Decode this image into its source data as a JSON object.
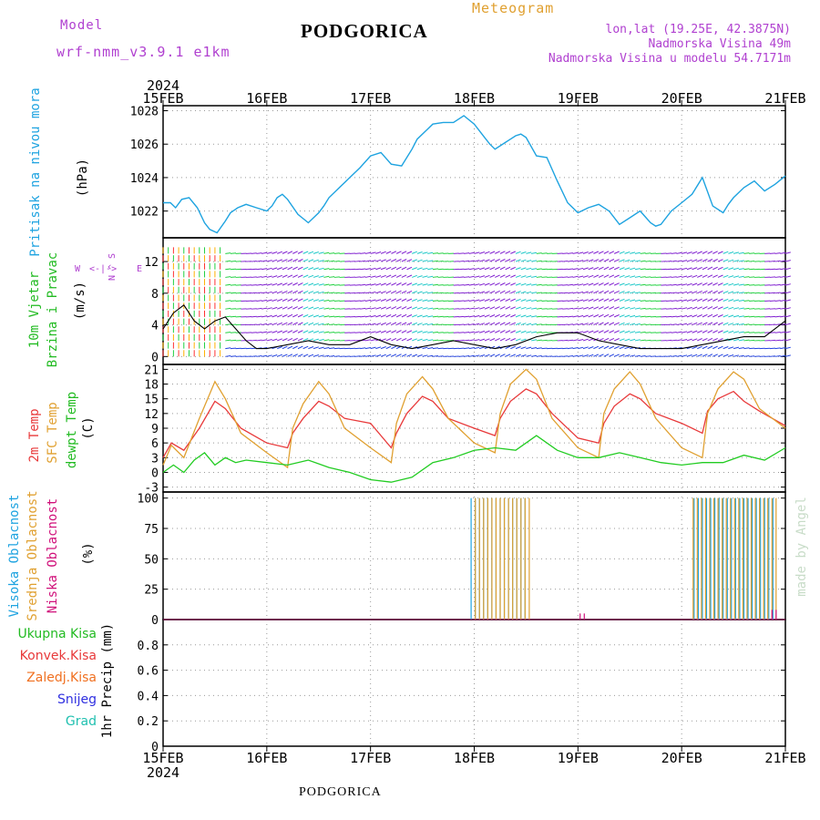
{
  "header": {
    "model_label": "Model",
    "model_name": "wrf-nmm_v3.9.1 e1km",
    "station": "PODGORICA",
    "product": "Meteogram",
    "lonlat": "lon,lat (19.25E, 42.3875N)",
    "elevation": "Nadmorska Visina 49m",
    "model_elevation": "Nadmorska Visina u modelu 54.7171m"
  },
  "footer": {
    "station": "PODGORICA"
  },
  "watermark": "made by Angel",
  "time_axis": {
    "year": "2024",
    "ticks": [
      "15FEB",
      "16FEB",
      "17FEB",
      "18FEB",
      "19FEB",
      "20FEB",
      "21FEB"
    ]
  },
  "colors": {
    "pressure": "#1ea3e0",
    "temp2m": "#e8393a",
    "sfc": "#e0a030",
    "dewpt": "#22cc22",
    "high_cloud": "#1ea3e0",
    "mid_cloud": "#e0a030",
    "low_cloud": "#d0107a",
    "magenta_label": "#b040d0"
  },
  "chart_data": [
    {
      "type": "line",
      "id": "pressure",
      "ylabels": [
        "Pritisak na nivou mora",
        "(hPa)"
      ],
      "ylim": [
        1020.4,
        1028.3
      ],
      "yticks": [
        1022,
        1024,
        1026,
        1028
      ],
      "series": [
        {
          "x": [
            0,
            0.07,
            0.12,
            0.18,
            0.25,
            0.33,
            0.4,
            0.45,
            0.52,
            0.6,
            0.65,
            0.72,
            0.8,
            0.9,
            1.0,
            1.05,
            1.1,
            1.15,
            1.2,
            1.3,
            1.4,
            1.5,
            1.55,
            1.6,
            1.7,
            1.8,
            1.9,
            2.0,
            2.1,
            2.2,
            2.3,
            2.35,
            2.4,
            2.45,
            2.55,
            2.6,
            2.7,
            2.8,
            2.9,
            3.0,
            3.1,
            3.15,
            3.2,
            3.3,
            3.35,
            3.4,
            3.45,
            3.5,
            3.6,
            3.7,
            3.8,
            3.9,
            4.0,
            4.1,
            4.2,
            4.3,
            4.4,
            4.5,
            4.6,
            4.7,
            4.75,
            4.8,
            4.9,
            5.0,
            5.1,
            5.2,
            5.3,
            5.4,
            5.45,
            5.5,
            5.6,
            5.7,
            5.8,
            5.9,
            6.0
          ],
          "y": [
            1022.5,
            1022.5,
            1022.2,
            1022.7,
            1022.8,
            1022.2,
            1021.3,
            1020.9,
            1020.7,
            1021.4,
            1021.9,
            1022.2,
            1022.4,
            1022.2,
            1022.0,
            1022.3,
            1022.8,
            1023.0,
            1022.7,
            1021.8,
            1021.3,
            1021.9,
            1022.3,
            1022.8,
            1023.4,
            1024.0,
            1024.6,
            1025.3,
            1025.5,
            1024.8,
            1024.7,
            1025.2,
            1025.7,
            1026.3,
            1026.9,
            1027.2,
            1027.3,
            1027.3,
            1027.7,
            1027.2,
            1026.4,
            1026.0,
            1025.7,
            1026.1,
            1026.3,
            1026.5,
            1026.6,
            1026.4,
            1025.3,
            1025.2,
            1023.8,
            1022.5,
            1021.9,
            1022.2,
            1022.4,
            1022.0,
            1021.2,
            1021.6,
            1022.0,
            1021.3,
            1021.1,
            1021.2,
            1022.0,
            1022.5,
            1023.0,
            1024.0,
            1022.3,
            1021.9,
            1022.4,
            1022.8,
            1023.4,
            1023.8,
            1023.2,
            1023.6,
            1024.1
          ]
        }
      ]
    },
    {
      "type": "line",
      "id": "wind",
      "ylabels": [
        "10m Vjetar",
        "Brzina i Pravac",
        "(m/s)"
      ],
      "legend_glyph": [
        "W",
        "<-|->",
        "E",
        "N",
        "^",
        "S"
      ],
      "ylim": [
        -1,
        15
      ],
      "yticks": [
        0,
        4,
        8,
        12
      ],
      "series": [
        {
          "name": "speed",
          "x": [
            0,
            0.1,
            0.2,
            0.3,
            0.4,
            0.5,
            0.6,
            0.7,
            0.8,
            0.9,
            1.0,
            1.2,
            1.4,
            1.6,
            1.8,
            2.0,
            2.2,
            2.4,
            2.6,
            2.8,
            3.0,
            3.2,
            3.4,
            3.6,
            3.8,
            4.0,
            4.2,
            4.4,
            4.6,
            4.8,
            5.0,
            5.2,
            5.4,
            5.6,
            5.8,
            6.0
          ],
          "y": [
            3.5,
            5.5,
            6.5,
            4.5,
            3.5,
            4.5,
            5.0,
            3.5,
            2.0,
            1.0,
            1.0,
            1.5,
            2.0,
            1.5,
            1.5,
            2.5,
            1.5,
            1.0,
            1.5,
            2.0,
            1.5,
            1.0,
            1.5,
            2.5,
            3.0,
            3.0,
            2.0,
            1.5,
            1.0,
            1.0,
            1.0,
            1.5,
            2.0,
            2.5,
            2.5,
            4.5
          ]
        }
      ]
    },
    {
      "type": "line",
      "id": "temperature",
      "ylabels": [
        "2m Temp",
        "SFC Temp",
        "dewpt Temp",
        "(C)"
      ],
      "ylim": [
        -4,
        22
      ],
      "yticks": [
        -3,
        0,
        3,
        6,
        9,
        12,
        15,
        18,
        21
      ],
      "series": [
        {
          "name": "2m Temp",
          "x": [
            0,
            0.08,
            0.2,
            0.35,
            0.5,
            0.6,
            0.75,
            1.0,
            1.2,
            1.25,
            1.35,
            1.5,
            1.6,
            1.75,
            2.0,
            2.2,
            2.25,
            2.35,
            2.5,
            2.6,
            2.75,
            3.0,
            3.2,
            3.25,
            3.35,
            3.5,
            3.6,
            3.75,
            4.0,
            4.2,
            4.25,
            4.35,
            4.5,
            4.6,
            4.75,
            5.0,
            5.2,
            5.25,
            5.35,
            5.5,
            5.6,
            5.75,
            6.0
          ],
          "y": [
            3.0,
            6.0,
            4.5,
            9.0,
            14.5,
            13.0,
            9.0,
            6.0,
            5.0,
            8.0,
            11.0,
            14.5,
            13.5,
            11.0,
            10.0,
            5.0,
            8.0,
            12.0,
            15.5,
            14.5,
            11.0,
            9.0,
            7.5,
            11.0,
            14.5,
            17.0,
            16.0,
            12.0,
            7.0,
            6.0,
            10.0,
            13.5,
            16.0,
            15.0,
            12.0,
            10.0,
            8.0,
            12.5,
            15.0,
            16.5,
            14.5,
            12.5,
            9.5
          ]
        },
        {
          "name": "SFC Temp",
          "x": [
            0,
            0.08,
            0.2,
            0.35,
            0.5,
            0.6,
            0.75,
            1.0,
            1.2,
            1.25,
            1.35,
            1.5,
            1.6,
            1.75,
            2.0,
            2.2,
            2.25,
            2.35,
            2.5,
            2.6,
            2.75,
            3.0,
            3.2,
            3.25,
            3.35,
            3.5,
            3.6,
            3.75,
            4.0,
            4.2,
            4.25,
            4.35,
            4.5,
            4.6,
            4.75,
            5.0,
            5.2,
            5.25,
            5.35,
            5.5,
            5.6,
            5.75,
            6.0
          ],
          "y": [
            1.5,
            5.5,
            3.0,
            11.0,
            18.5,
            15.0,
            8.0,
            4.0,
            1.0,
            9.0,
            14.0,
            18.5,
            16.0,
            9.0,
            5.0,
            2.0,
            10.0,
            16.0,
            19.5,
            17.0,
            11.0,
            6.0,
            4.0,
            12.0,
            18.0,
            21.0,
            19.0,
            11.0,
            5.0,
            3.0,
            12.0,
            17.0,
            20.5,
            18.0,
            11.0,
            5.0,
            3.0,
            12.0,
            17.0,
            20.5,
            19.0,
            13.0,
            9.0
          ]
        },
        {
          "name": "dewpt Temp",
          "x": [
            0,
            0.1,
            0.2,
            0.3,
            0.4,
            0.5,
            0.6,
            0.7,
            0.8,
            1.0,
            1.2,
            1.4,
            1.6,
            1.8,
            2.0,
            2.2,
            2.4,
            2.6,
            2.8,
            3.0,
            3.2,
            3.4,
            3.6,
            3.8,
            4.0,
            4.2,
            4.4,
            4.6,
            4.8,
            5.0,
            5.2,
            5.4,
            5.6,
            5.8,
            6.0
          ],
          "y": [
            0,
            1.5,
            0,
            2.5,
            4.0,
            1.5,
            3.0,
            2.0,
            2.5,
            2.0,
            1.5,
            2.5,
            1.0,
            0,
            -1.5,
            -2.0,
            -1.0,
            2.0,
            3.0,
            4.5,
            5.0,
            4.5,
            7.5,
            4.5,
            3.0,
            3.0,
            4.0,
            3.0,
            2.0,
            1.5,
            2.0,
            2.0,
            3.5,
            2.5,
            5.0
          ]
        }
      ]
    },
    {
      "type": "bar",
      "id": "clouds",
      "ylabels": [
        "Visoka Oblacnost",
        "Srednja Oblacnost",
        "Niska Oblacnost",
        "(%)"
      ],
      "ylim": [
        0,
        105
      ],
      "yticks": [
        0,
        25,
        50,
        75,
        100
      ],
      "series": [
        {
          "name": "Visoka Oblacnost",
          "ranges": [
            [
              2.97,
              3.5,
              100
            ],
            [
              5.12,
              5.9,
              100
            ]
          ]
        },
        {
          "name": "Srednja Oblacnost",
          "ranges": [
            [
              3.0,
              3.55,
              100
            ],
            [
              5.1,
              5.9,
              100
            ]
          ]
        },
        {
          "name": "Niska Oblacnost",
          "ranges": [
            [
              4.0,
              4.05,
              5
            ],
            [
              5.85,
              5.9,
              8
            ]
          ]
        }
      ]
    },
    {
      "type": "line",
      "id": "precip",
      "ylabels": [
        "1hr Precip",
        "(mm)"
      ],
      "legend": [
        "Ukupna Kisa",
        "Konvek.Kisa",
        "Zaledj.Kisa",
        "Snijeg",
        "Grad"
      ],
      "ylim": [
        0,
        1.0
      ],
      "yticks": [
        0,
        0.2,
        0.4,
        0.6,
        0.8
      ],
      "series": []
    }
  ]
}
